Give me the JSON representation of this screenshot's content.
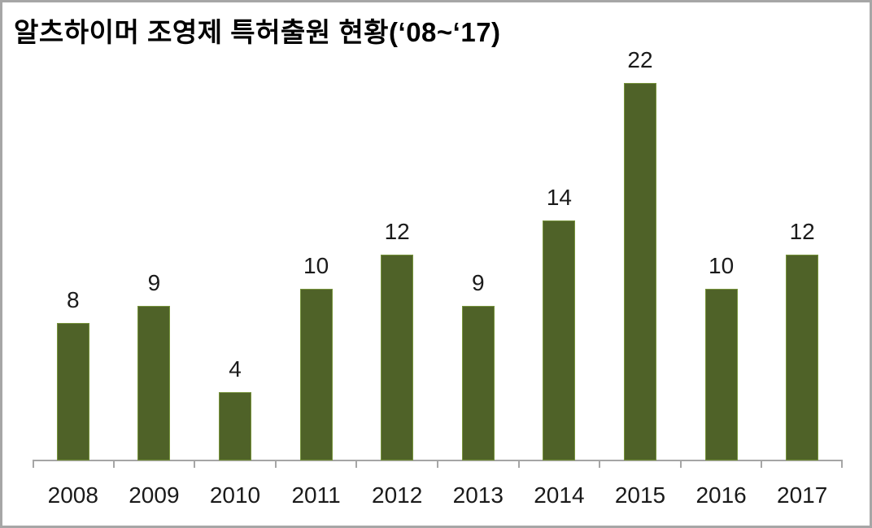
{
  "chart_data": {
    "type": "bar",
    "title": "알츠하이머 조영제 특허출원 현황(‘08~‘17)",
    "categories": [
      "2008",
      "2009",
      "2010",
      "2011",
      "2012",
      "2013",
      "2014",
      "2015",
      "2016",
      "2017"
    ],
    "values": [
      8,
      9,
      4,
      10,
      12,
      9,
      14,
      22,
      10,
      12
    ],
    "xlabel": "",
    "ylabel": "",
    "data_labels": [
      8,
      9,
      4,
      10,
      12,
      9,
      14,
      22,
      10,
      12
    ],
    "grid": false,
    "legend": "none",
    "y_axis_visible": false,
    "x_axis_visible": true,
    "colors": {
      "bar_fill": "#4F6228",
      "bar_border": "#77933C",
      "axis_line": "#A6A6A6",
      "text": "#1A1A1A",
      "title_text": "#000000",
      "outer_border": "#A6A6A6",
      "background": "#FFFFFF"
    }
  }
}
